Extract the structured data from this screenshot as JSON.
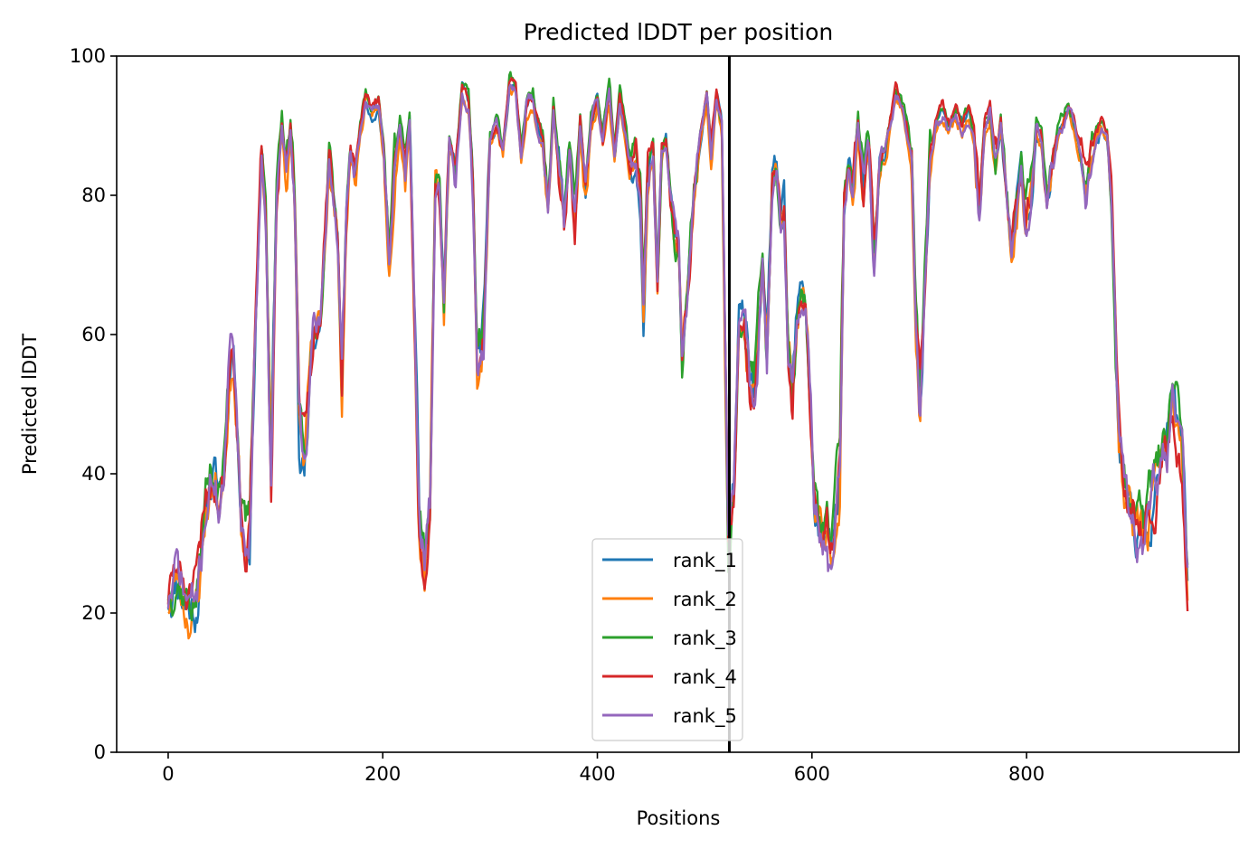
{
  "chart_data": {
    "type": "line",
    "title": "Predicted lDDT per position",
    "xlabel": "Positions",
    "ylabel": "Predicted lDDT",
    "xlim": [
      -48,
      998
    ],
    "ylim": [
      0,
      100
    ],
    "xticks": [
      0,
      200,
      400,
      600,
      800
    ],
    "yticks": [
      0,
      20,
      40,
      60,
      80,
      100
    ],
    "grid": false,
    "legend_position": "lower center",
    "vline": {
      "x": 523,
      "color": "#000000"
    },
    "base_profile": [
      [
        0,
        22
      ],
      [
        8,
        26
      ],
      [
        16,
        22
      ],
      [
        25,
        21
      ],
      [
        30,
        26
      ],
      [
        35,
        36
      ],
      [
        42,
        40
      ],
      [
        47,
        37
      ],
      [
        52,
        40
      ],
      [
        57,
        55
      ],
      [
        60,
        60
      ],
      [
        63,
        54
      ],
      [
        68,
        36
      ],
      [
        72,
        30
      ],
      [
        76,
        32
      ],
      [
        81,
        60
      ],
      [
        87,
        86
      ],
      [
        91,
        78
      ],
      [
        96,
        42
      ],
      [
        101,
        80
      ],
      [
        106,
        90
      ],
      [
        110,
        83
      ],
      [
        114,
        89
      ],
      [
        118,
        78
      ],
      [
        122,
        48
      ],
      [
        127,
        42
      ],
      [
        132,
        53
      ],
      [
        137,
        60
      ],
      [
        142,
        62
      ],
      [
        147,
        76
      ],
      [
        150,
        86
      ],
      [
        154,
        80
      ],
      [
        158,
        74
      ],
      [
        162,
        52
      ],
      [
        166,
        76
      ],
      [
        170,
        86
      ],
      [
        174,
        83
      ],
      [
        179,
        89
      ],
      [
        184,
        94
      ],
      [
        190,
        92
      ],
      [
        196,
        93
      ],
      [
        201,
        86
      ],
      [
        206,
        71
      ],
      [
        211,
        84
      ],
      [
        216,
        90
      ],
      [
        221,
        84
      ],
      [
        225,
        91
      ],
      [
        230,
        60
      ],
      [
        234,
        33
      ],
      [
        239,
        28
      ],
      [
        244,
        35
      ],
      [
        249,
        82
      ],
      [
        253,
        80
      ],
      [
        257,
        64
      ],
      [
        262,
        88
      ],
      [
        268,
        84
      ],
      [
        274,
        95
      ],
      [
        280,
        93
      ],
      [
        284,
        82
      ],
      [
        288,
        55
      ],
      [
        294,
        60
      ],
      [
        300,
        88
      ],
      [
        306,
        90
      ],
      [
        312,
        86
      ],
      [
        318,
        96
      ],
      [
        324,
        95
      ],
      [
        329,
        86
      ],
      [
        334,
        93
      ],
      [
        340,
        94
      ],
      [
        344,
        90
      ],
      [
        349,
        88
      ],
      [
        354,
        78
      ],
      [
        359,
        92
      ],
      [
        364,
        84
      ],
      [
        369,
        76
      ],
      [
        374,
        86
      ],
      [
        379,
        75
      ],
      [
        384,
        90
      ],
      [
        389,
        80
      ],
      [
        394,
        90
      ],
      [
        400,
        94
      ],
      [
        405,
        88
      ],
      [
        411,
        95
      ],
      [
        416,
        86
      ],
      [
        421,
        94
      ],
      [
        426,
        89
      ],
      [
        430,
        84
      ],
      [
        436,
        85
      ],
      [
        440,
        80
      ],
      [
        443,
        64
      ],
      [
        447,
        84
      ],
      [
        452,
        87
      ],
      [
        456,
        66
      ],
      [
        460,
        86
      ],
      [
        464,
        88
      ],
      [
        468,
        80
      ],
      [
        472,
        74
      ],
      [
        476,
        72
      ],
      [
        479,
        55
      ],
      [
        484,
        64
      ],
      [
        490,
        80
      ],
      [
        496,
        88
      ],
      [
        502,
        94
      ],
      [
        506,
        86
      ],
      [
        511,
        95
      ],
      [
        516,
        90
      ],
      [
        522,
        30
      ],
      [
        527,
        38
      ],
      [
        532,
        62
      ],
      [
        537,
        62
      ],
      [
        542,
        52
      ],
      [
        546,
        50
      ],
      [
        550,
        60
      ],
      [
        554,
        70
      ],
      [
        558,
        56
      ],
      [
        563,
        82
      ],
      [
        567,
        84
      ],
      [
        571,
        76
      ],
      [
        574,
        78
      ],
      [
        578,
        56
      ],
      [
        582,
        50
      ],
      [
        586,
        62
      ],
      [
        590,
        66
      ],
      [
        594,
        64
      ],
      [
        598,
        52
      ],
      [
        602,
        36
      ],
      [
        606,
        32
      ],
      [
        610,
        30
      ],
      [
        614,
        32
      ],
      [
        617,
        27
      ],
      [
        621,
        32
      ],
      [
        626,
        40
      ],
      [
        630,
        78
      ],
      [
        634,
        84
      ],
      [
        638,
        80
      ],
      [
        643,
        90
      ],
      [
        648,
        80
      ],
      [
        653,
        86
      ],
      [
        658,
        70
      ],
      [
        663,
        84
      ],
      [
        668,
        86
      ],
      [
        673,
        90
      ],
      [
        678,
        94
      ],
      [
        683,
        93
      ],
      [
        688,
        90
      ],
      [
        693,
        84
      ],
      [
        697,
        60
      ],
      [
        701,
        48
      ],
      [
        705,
        66
      ],
      [
        710,
        84
      ],
      [
        716,
        90
      ],
      [
        722,
        92
      ],
      [
        728,
        90
      ],
      [
        734,
        92
      ],
      [
        740,
        90
      ],
      [
        746,
        92
      ],
      [
        751,
        88
      ],
      [
        756,
        78
      ],
      [
        761,
        90
      ],
      [
        766,
        92
      ],
      [
        771,
        84
      ],
      [
        776,
        90
      ],
      [
        781,
        80
      ],
      [
        786,
        72
      ],
      [
        790,
        78
      ],
      [
        795,
        84
      ],
      [
        799,
        76
      ],
      [
        804,
        80
      ],
      [
        809,
        90
      ],
      [
        814,
        88
      ],
      [
        819,
        78
      ],
      [
        824,
        84
      ],
      [
        829,
        88
      ],
      [
        834,
        90
      ],
      [
        839,
        92
      ],
      [
        844,
        90
      ],
      [
        850,
        86
      ],
      [
        855,
        80
      ],
      [
        860,
        84
      ],
      [
        865,
        88
      ],
      [
        870,
        90
      ],
      [
        875,
        89
      ],
      [
        879,
        80
      ],
      [
        883,
        60
      ],
      [
        886,
        46
      ],
      [
        890,
        40
      ],
      [
        895,
        36
      ],
      [
        900,
        34
      ],
      [
        905,
        32
      ],
      [
        909,
        30
      ],
      [
        913,
        33
      ],
      [
        917,
        36
      ],
      [
        921,
        38
      ],
      [
        926,
        42
      ],
      [
        931,
        44
      ],
      [
        936,
        50
      ],
      [
        941,
        46
      ],
      [
        945,
        40
      ],
      [
        948,
        30
      ],
      [
        950,
        24
      ]
    ],
    "series": [
      {
        "name": "rank_1",
        "color": "#1f77b4",
        "seed": 11,
        "offset": 0.0
      },
      {
        "name": "rank_2",
        "color": "#ff7f0e",
        "seed": 23,
        "offset": -0.8
      },
      {
        "name": "rank_3",
        "color": "#2ca02c",
        "seed": 37,
        "offset": 1.0
      },
      {
        "name": "rank_4",
        "color": "#d62728",
        "seed": 51,
        "offset": 0.4
      },
      {
        "name": "rank_5",
        "color": "#9467bd",
        "seed": 71,
        "offset": -0.2
      }
    ]
  }
}
